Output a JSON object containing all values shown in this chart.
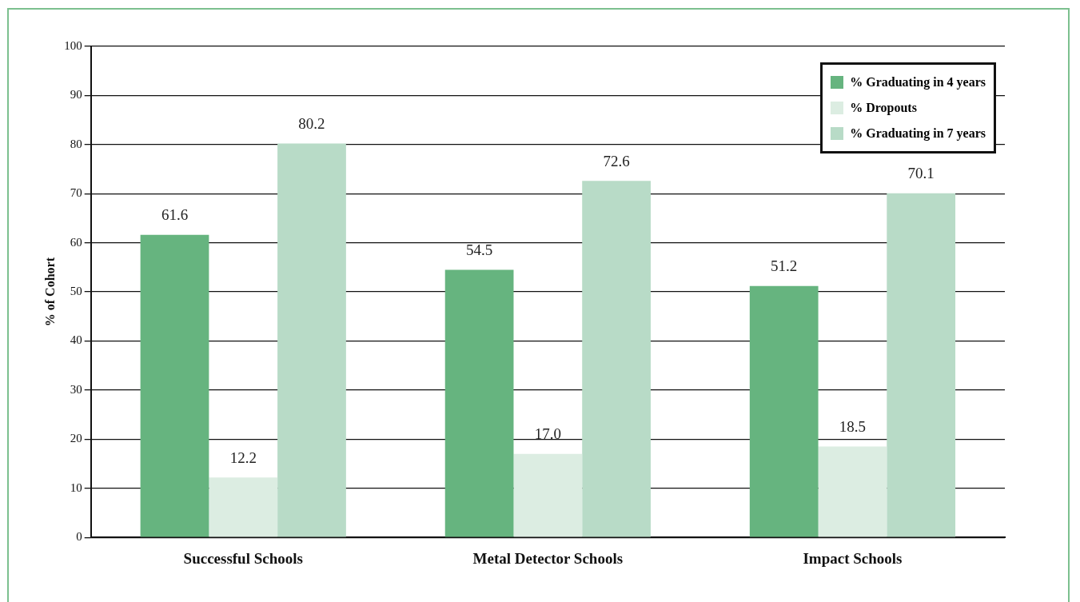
{
  "chart_data": {
    "type": "bar",
    "ylabel": "% of Cohort",
    "categories": [
      "Successful Schools",
      "Metal Detector Schools",
      "Impact Schools"
    ],
    "series": [
      {
        "name": "% Graduating in 4 years",
        "color": "#66b47f",
        "values": [
          61.6,
          54.5,
          51.2
        ],
        "value_labels": [
          "61.6",
          "54.5",
          "51.2"
        ]
      },
      {
        "name": "% Dropouts",
        "color": "#dcede2",
        "values": [
          12.2,
          17.0,
          18.5
        ],
        "value_labels": [
          "12.2",
          "17.0",
          "18.5"
        ]
      },
      {
        "name": "% Graduating in 7 years",
        "color": "#b8dbc7",
        "values": [
          80.2,
          72.6,
          70.1
        ],
        "value_labels": [
          "80.2",
          "72.6",
          "70.1"
        ]
      }
    ],
    "ylim": [
      0,
      100
    ],
    "yticks": [
      0,
      10,
      20,
      30,
      40,
      50,
      60,
      70,
      80,
      90,
      100
    ],
    "grid": "y",
    "legend": "top right"
  }
}
